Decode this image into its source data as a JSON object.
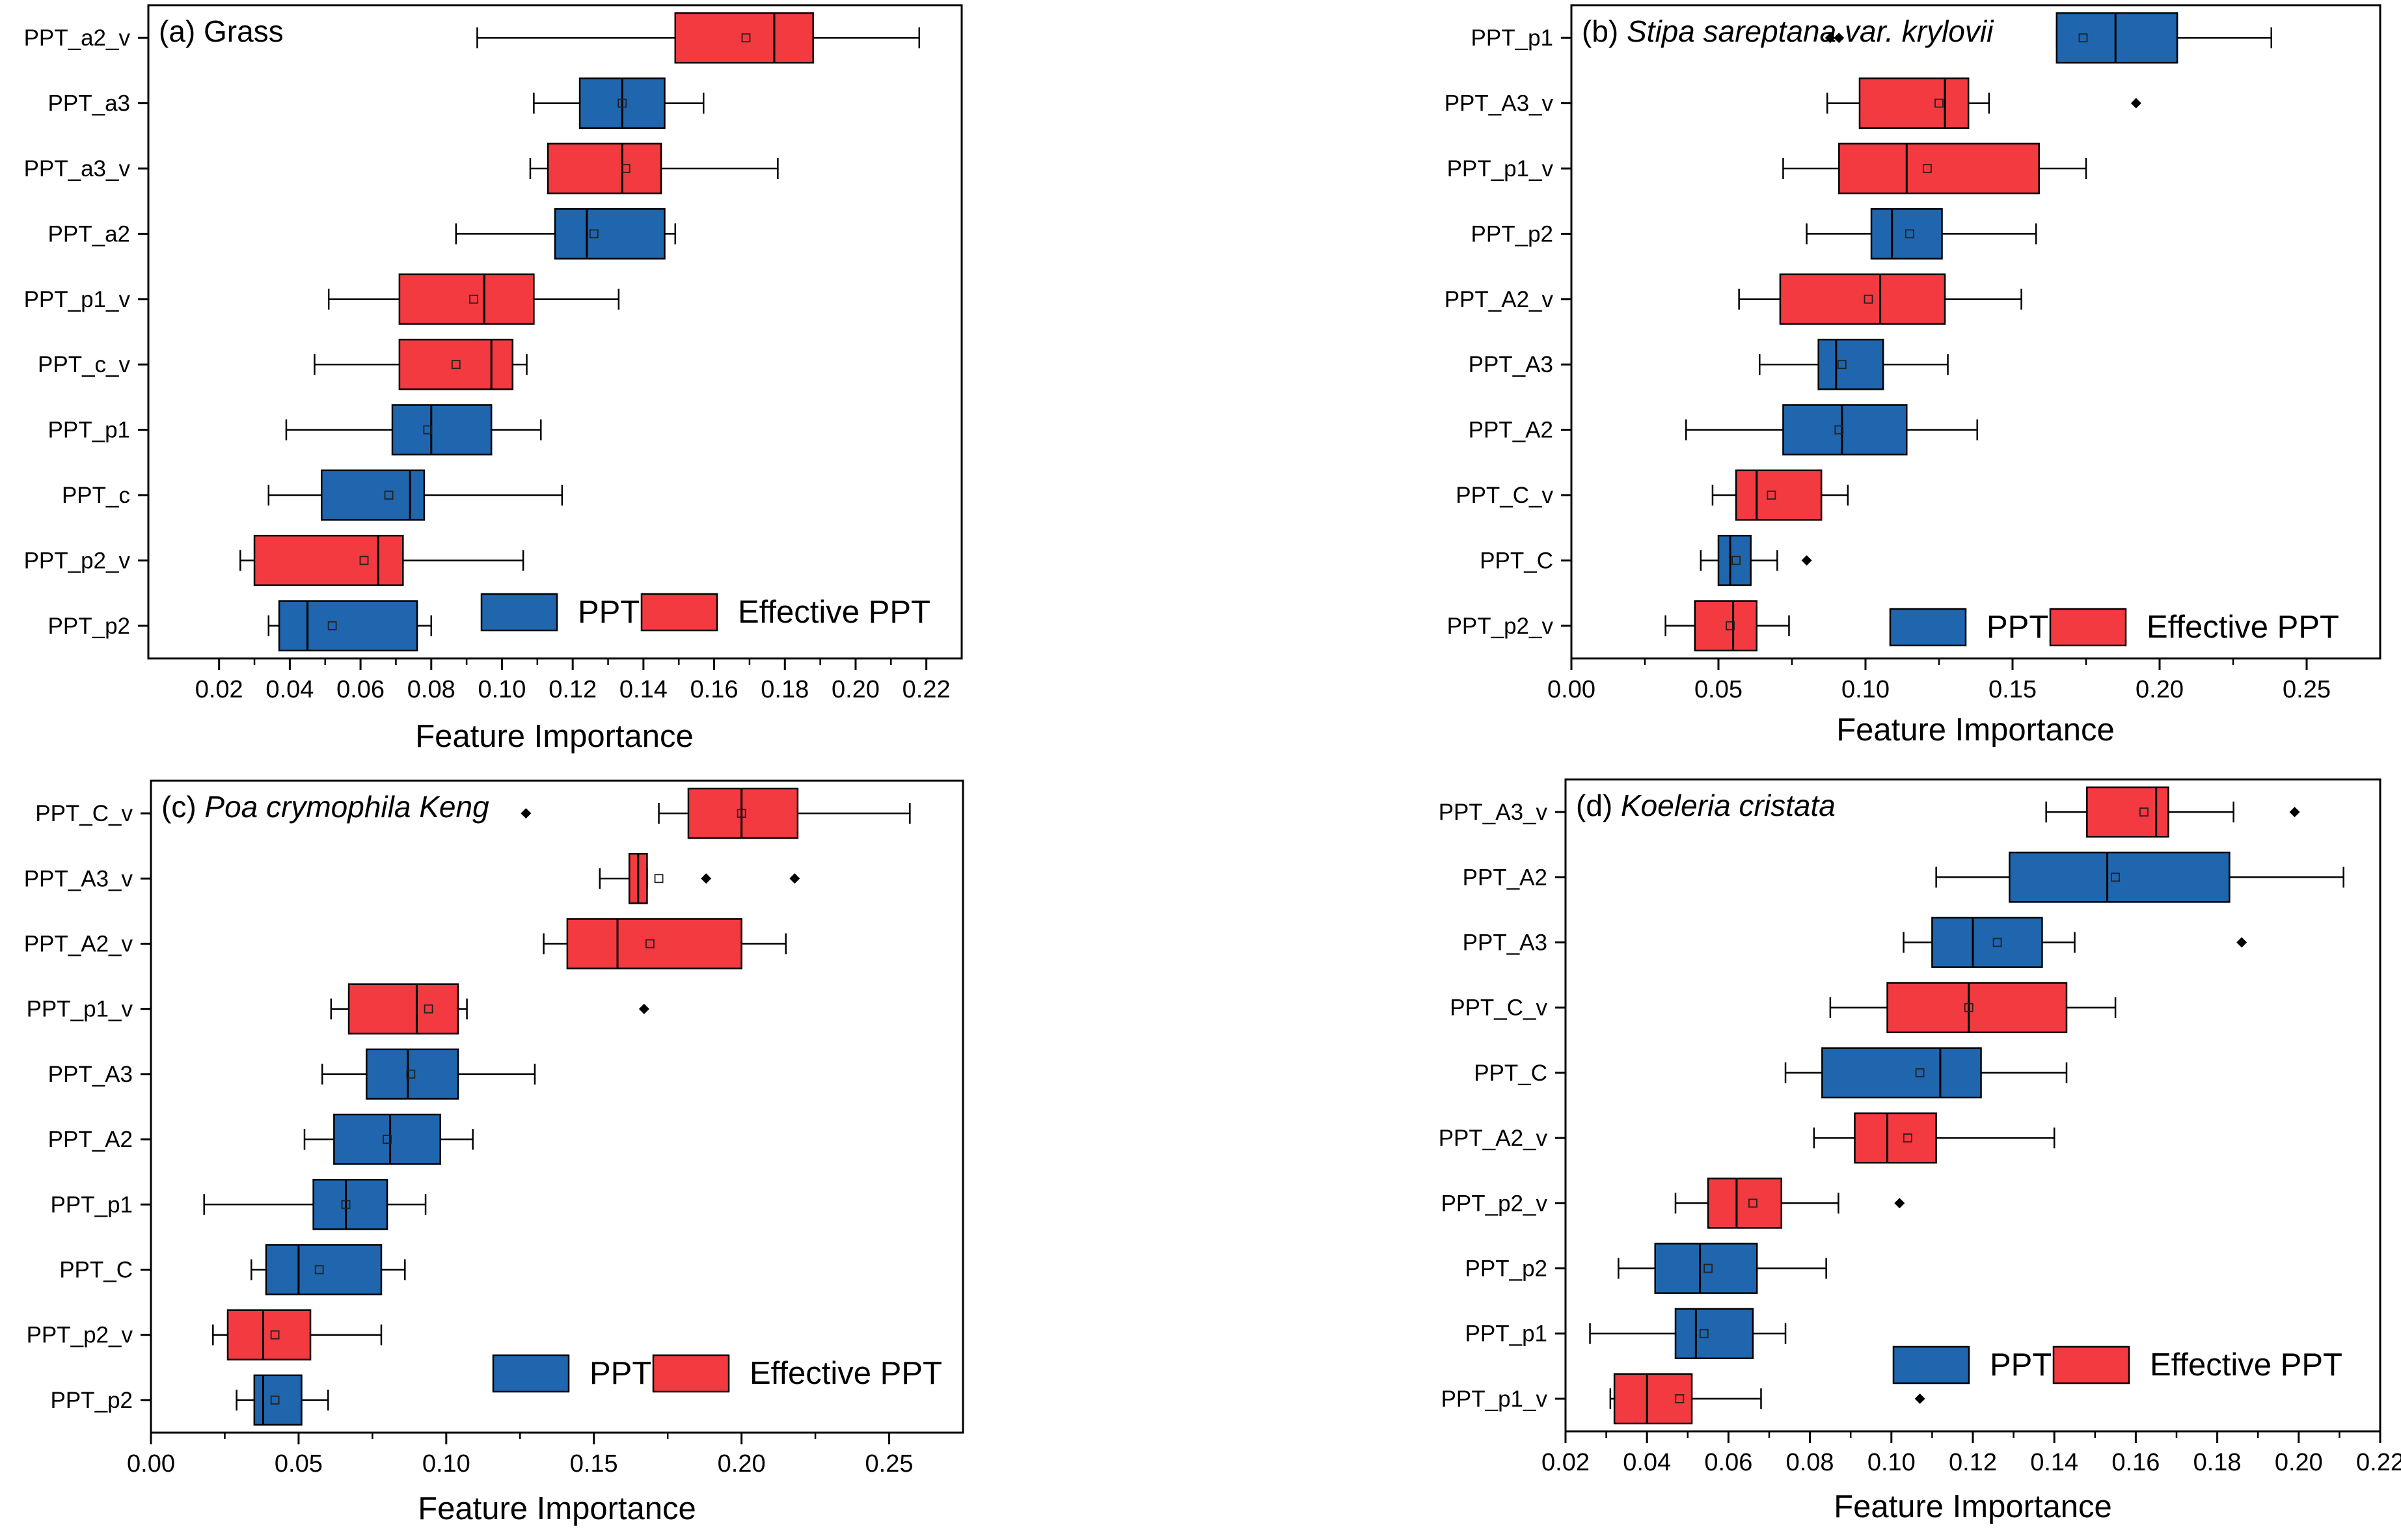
{
  "figure": {
    "colors": {
      "ppt": "#1F66AE",
      "effective": "#F23A40",
      "axis": "#000000"
    }
  },
  "chart_data": [
    {
      "type": "box",
      "panel_label": "(a)",
      "title": "Grass",
      "title_italic": false,
      "xlabel": "Feature Importance",
      "xlim": [
        0.0,
        0.23
      ],
      "xticks": [
        0.02,
        0.04,
        0.06,
        0.08,
        0.1,
        0.12,
        0.14,
        0.16,
        0.18,
        0.2,
        0.22
      ],
      "tick_labels": [
        "0.02",
        "0.04",
        "0.06",
        "0.08",
        "0.10",
        "0.12",
        "0.14",
        "0.16",
        "0.18",
        "0.20",
        "0.22"
      ],
      "legend": [
        {
          "name": "PPT",
          "color": "#1F66AE"
        },
        {
          "name": "Effective PPT",
          "color": "#F23A40"
        }
      ],
      "legend_position": "lower-right",
      "categories": [
        {
          "label": "PPT_a2_v",
          "group": "Effective PPT",
          "whisker_low": 0.093,
          "q1": 0.149,
          "median": 0.177,
          "q3": 0.188,
          "whisker_high": 0.218,
          "mean": 0.169,
          "outliers": []
        },
        {
          "label": "PPT_a3",
          "group": "PPT",
          "whisker_low": 0.109,
          "q1": 0.122,
          "median": 0.134,
          "q3": 0.146,
          "whisker_high": 0.157,
          "mean": 0.134,
          "outliers": []
        },
        {
          "label": "PPT_a3_v",
          "group": "Effective PPT",
          "whisker_low": 0.108,
          "q1": 0.113,
          "median": 0.134,
          "q3": 0.145,
          "whisker_high": 0.178,
          "mean": 0.135,
          "outliers": []
        },
        {
          "label": "PPT_a2",
          "group": "PPT",
          "whisker_low": 0.087,
          "q1": 0.115,
          "median": 0.124,
          "q3": 0.146,
          "whisker_high": 0.149,
          "mean": 0.126,
          "outliers": []
        },
        {
          "label": "PPT_p1_v",
          "group": "Effective PPT",
          "whisker_low": 0.051,
          "q1": 0.071,
          "median": 0.095,
          "q3": 0.109,
          "whisker_high": 0.133,
          "mean": 0.092,
          "outliers": []
        },
        {
          "label": "PPT_c_v",
          "group": "Effective PPT",
          "whisker_low": 0.047,
          "q1": 0.071,
          "median": 0.097,
          "q3": 0.103,
          "whisker_high": 0.107,
          "mean": 0.087,
          "outliers": []
        },
        {
          "label": "PPT_p1",
          "group": "PPT",
          "whisker_low": 0.039,
          "q1": 0.069,
          "median": 0.08,
          "q3": 0.097,
          "whisker_high": 0.111,
          "mean": 0.079,
          "outliers": []
        },
        {
          "label": "PPT_c",
          "group": "PPT",
          "whisker_low": 0.034,
          "q1": 0.049,
          "median": 0.074,
          "q3": 0.078,
          "whisker_high": 0.117,
          "mean": 0.068,
          "outliers": []
        },
        {
          "label": "PPT_p2_v",
          "group": "Effective PPT",
          "whisker_low": 0.026,
          "q1": 0.03,
          "median": 0.065,
          "q3": 0.072,
          "whisker_high": 0.106,
          "mean": 0.061,
          "outliers": []
        },
        {
          "label": "PPT_p2",
          "group": "PPT",
          "whisker_low": 0.034,
          "q1": 0.037,
          "median": 0.045,
          "q3": 0.076,
          "whisker_high": 0.08,
          "mean": 0.052,
          "outliers": []
        }
      ]
    },
    {
      "type": "box",
      "panel_label": "(b)",
      "title": "Stipa sareptana var. krylovii",
      "title_italic": true,
      "xlabel": "Feature Importance",
      "xlim": [
        0.0,
        0.275
      ],
      "xticks": [
        0.0,
        0.05,
        0.1,
        0.15,
        0.2,
        0.25
      ],
      "tick_labels": [
        "0.00",
        "0.05",
        "0.10",
        "0.15",
        "0.20",
        "0.25"
      ],
      "legend": [
        {
          "name": "PPT",
          "color": "#1F66AE"
        },
        {
          "name": "Effective PPT",
          "color": "#F23A40"
        }
      ],
      "legend_position": "lower-right",
      "categories": [
        {
          "label": "PPT_p1",
          "group": "PPT",
          "whisker_low": 0.165,
          "q1": 0.165,
          "median": 0.185,
          "q3": 0.206,
          "whisker_high": 0.238,
          "mean": 0.174,
          "outliers": [
            0.088,
            0.091
          ]
        },
        {
          "label": "PPT_A3_v",
          "group": "Effective PPT",
          "whisker_low": 0.087,
          "q1": 0.098,
          "median": 0.127,
          "q3": 0.135,
          "whisker_high": 0.142,
          "mean": 0.125,
          "outliers": [
            0.192
          ]
        },
        {
          "label": "PPT_p1_v",
          "group": "Effective PPT",
          "whisker_low": 0.072,
          "q1": 0.091,
          "median": 0.114,
          "q3": 0.159,
          "whisker_high": 0.175,
          "mean": 0.121,
          "outliers": []
        },
        {
          "label": "PPT_p2",
          "group": "PPT",
          "whisker_low": 0.08,
          "q1": 0.102,
          "median": 0.109,
          "q3": 0.126,
          "whisker_high": 0.158,
          "mean": 0.115,
          "outliers": []
        },
        {
          "label": "PPT_A2_v",
          "group": "Effective PPT",
          "whisker_low": 0.057,
          "q1": 0.071,
          "median": 0.105,
          "q3": 0.127,
          "whisker_high": 0.153,
          "mean": 0.101,
          "outliers": []
        },
        {
          "label": "PPT_A3",
          "group": "PPT",
          "whisker_low": 0.064,
          "q1": 0.084,
          "median": 0.09,
          "q3": 0.106,
          "whisker_high": 0.128,
          "mean": 0.092,
          "outliers": []
        },
        {
          "label": "PPT_A2",
          "group": "PPT",
          "whisker_low": 0.039,
          "q1": 0.072,
          "median": 0.092,
          "q3": 0.114,
          "whisker_high": 0.138,
          "mean": 0.091,
          "outliers": []
        },
        {
          "label": "PPT_C_v",
          "group": "Effective PPT",
          "whisker_low": 0.048,
          "q1": 0.056,
          "median": 0.063,
          "q3": 0.085,
          "whisker_high": 0.094,
          "mean": 0.068,
          "outliers": []
        },
        {
          "label": "PPT_C",
          "group": "PPT",
          "whisker_low": 0.044,
          "q1": 0.05,
          "median": 0.054,
          "q3": 0.061,
          "whisker_high": 0.07,
          "mean": 0.056,
          "outliers": [
            0.08
          ]
        },
        {
          "label": "PPT_p2_v",
          "group": "Effective PPT",
          "whisker_low": 0.032,
          "q1": 0.042,
          "median": 0.055,
          "q3": 0.063,
          "whisker_high": 0.074,
          "mean": 0.054,
          "outliers": []
        }
      ]
    },
    {
      "type": "box",
      "panel_label": "(c)",
      "title": "Poa crymophila Keng",
      "title_italic": true,
      "xlabel": "Feature Importance",
      "xlim": [
        0.0,
        0.275
      ],
      "xticks": [
        0.0,
        0.05,
        0.1,
        0.15,
        0.2,
        0.25
      ],
      "tick_labels": [
        "0.00",
        "0.05",
        "0.10",
        "0.15",
        "0.20",
        "0.25"
      ],
      "legend": [
        {
          "name": "PPT",
          "color": "#1F66AE"
        },
        {
          "name": "Effective PPT",
          "color": "#F23A40"
        }
      ],
      "legend_position": "lower-right",
      "categories": [
        {
          "label": "PPT_C_v",
          "group": "Effective PPT",
          "whisker_low": 0.172,
          "q1": 0.182,
          "median": 0.2,
          "q3": 0.219,
          "whisker_high": 0.257,
          "mean": 0.2,
          "outliers": [
            0.127
          ]
        },
        {
          "label": "PPT_A3_v",
          "group": "Effective PPT",
          "whisker_low": 0.152,
          "q1": 0.162,
          "median": 0.165,
          "q3": 0.168,
          "whisker_high": 0.168,
          "mean": 0.172,
          "outliers": [
            0.188,
            0.218
          ]
        },
        {
          "label": "PPT_A2_v",
          "group": "Effective PPT",
          "whisker_low": 0.133,
          "q1": 0.141,
          "median": 0.158,
          "q3": 0.2,
          "whisker_high": 0.215,
          "mean": 0.169,
          "outliers": []
        },
        {
          "label": "PPT_p1_v",
          "group": "Effective PPT",
          "whisker_low": 0.061,
          "q1": 0.067,
          "median": 0.09,
          "q3": 0.104,
          "whisker_high": 0.107,
          "mean": 0.094,
          "outliers": [
            0.167
          ]
        },
        {
          "label": "PPT_A3",
          "group": "PPT",
          "whisker_low": 0.058,
          "q1": 0.073,
          "median": 0.087,
          "q3": 0.104,
          "whisker_high": 0.13,
          "mean": 0.088,
          "outliers": []
        },
        {
          "label": "PPT_A2",
          "group": "PPT",
          "whisker_low": 0.052,
          "q1": 0.062,
          "median": 0.081,
          "q3": 0.098,
          "whisker_high": 0.109,
          "mean": 0.08,
          "outliers": []
        },
        {
          "label": "PPT_p1",
          "group": "PPT",
          "whisker_low": 0.018,
          "q1": 0.055,
          "median": 0.066,
          "q3": 0.08,
          "whisker_high": 0.093,
          "mean": 0.066,
          "outliers": []
        },
        {
          "label": "PPT_C",
          "group": "PPT",
          "whisker_low": 0.034,
          "q1": 0.039,
          "median": 0.05,
          "q3": 0.078,
          "whisker_high": 0.086,
          "mean": 0.057,
          "outliers": []
        },
        {
          "label": "PPT_p2_v",
          "group": "Effective PPT",
          "whisker_low": 0.021,
          "q1": 0.026,
          "median": 0.038,
          "q3": 0.054,
          "whisker_high": 0.078,
          "mean": 0.042,
          "outliers": []
        },
        {
          "label": "PPT_p2",
          "group": "PPT",
          "whisker_low": 0.029,
          "q1": 0.035,
          "median": 0.038,
          "q3": 0.051,
          "whisker_high": 0.06,
          "mean": 0.042,
          "outliers": []
        }
      ]
    },
    {
      "type": "box",
      "panel_label": "(d)",
      "title": "Koeleria cristata",
      "title_italic": true,
      "xlabel": "Feature Importance",
      "xlim": [
        0.02,
        0.22
      ],
      "xticks": [
        0.02,
        0.04,
        0.06,
        0.08,
        0.1,
        0.12,
        0.14,
        0.16,
        0.18,
        0.2,
        0.22
      ],
      "tick_labels": [
        "0.02",
        "0.04",
        "0.06",
        "0.08",
        "0.10",
        "0.12",
        "0.14",
        "0.16",
        "0.18",
        "0.20",
        "0.22"
      ],
      "legend": [
        {
          "name": "PPT",
          "color": "#1F66AE"
        },
        {
          "name": "Effective PPT",
          "color": "#F23A40"
        }
      ],
      "legend_position": "lower-right",
      "categories": [
        {
          "label": "PPT_A3_v",
          "group": "Effective PPT",
          "whisker_low": 0.138,
          "q1": 0.148,
          "median": 0.165,
          "q3": 0.168,
          "whisker_high": 0.184,
          "mean": 0.162,
          "outliers": [
            0.199
          ]
        },
        {
          "label": "PPT_A2",
          "group": "PPT",
          "whisker_low": 0.111,
          "q1": 0.129,
          "median": 0.153,
          "q3": 0.183,
          "whisker_high": 0.211,
          "mean": 0.155,
          "outliers": []
        },
        {
          "label": "PPT_A3",
          "group": "PPT",
          "whisker_low": 0.103,
          "q1": 0.11,
          "median": 0.12,
          "q3": 0.137,
          "whisker_high": 0.145,
          "mean": 0.126,
          "outliers": [
            0.186
          ]
        },
        {
          "label": "PPT_C_v",
          "group": "Effective PPT",
          "whisker_low": 0.085,
          "q1": 0.099,
          "median": 0.119,
          "q3": 0.143,
          "whisker_high": 0.155,
          "mean": 0.119,
          "outliers": []
        },
        {
          "label": "PPT_C",
          "group": "PPT",
          "whisker_low": 0.074,
          "q1": 0.083,
          "median": 0.112,
          "q3": 0.122,
          "whisker_high": 0.143,
          "mean": 0.107,
          "outliers": []
        },
        {
          "label": "PPT_A2_v",
          "group": "Effective PPT",
          "whisker_low": 0.081,
          "q1": 0.091,
          "median": 0.099,
          "q3": 0.111,
          "whisker_high": 0.14,
          "mean": 0.104,
          "outliers": []
        },
        {
          "label": "PPT_p2_v",
          "group": "Effective PPT",
          "whisker_low": 0.047,
          "q1": 0.055,
          "median": 0.062,
          "q3": 0.073,
          "whisker_high": 0.087,
          "mean": 0.066,
          "outliers": [
            0.102
          ]
        },
        {
          "label": "PPT_p2",
          "group": "PPT",
          "whisker_low": 0.033,
          "q1": 0.042,
          "median": 0.053,
          "q3": 0.067,
          "whisker_high": 0.084,
          "mean": 0.055,
          "outliers": []
        },
        {
          "label": "PPT_p1",
          "group": "PPT",
          "whisker_low": 0.026,
          "q1": 0.047,
          "median": 0.052,
          "q3": 0.066,
          "whisker_high": 0.074,
          "mean": 0.054,
          "outliers": []
        },
        {
          "label": "PPT_p1_v",
          "group": "Effective PPT",
          "whisker_low": 0.031,
          "q1": 0.032,
          "median": 0.04,
          "q3": 0.051,
          "whisker_high": 0.068,
          "mean": 0.048,
          "outliers": [
            0.107
          ]
        }
      ]
    }
  ]
}
